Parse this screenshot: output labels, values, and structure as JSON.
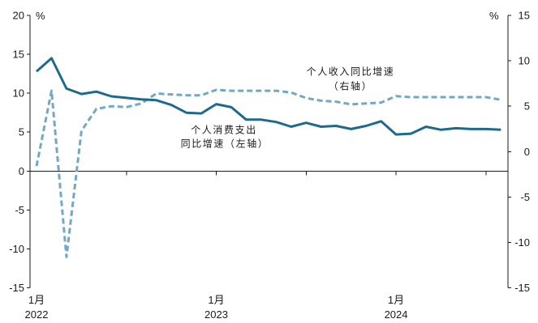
{
  "chart_data": {
    "type": "line",
    "x": [
      "2022-01",
      "2022-02",
      "2022-03",
      "2022-04",
      "2022-05",
      "2022-06",
      "2022-07",
      "2022-08",
      "2022-09",
      "2022-10",
      "2022-11",
      "2022-12",
      "2023-01",
      "2023-02",
      "2023-03",
      "2023-04",
      "2023-05",
      "2023-06",
      "2023-07",
      "2023-08",
      "2023-09",
      "2023-10",
      "2023-11",
      "2023-12",
      "2024-01",
      "2024-02",
      "2024-03",
      "2024-04",
      "2024-05",
      "2024-06",
      "2024-07",
      "2024-08"
    ],
    "x_ticks": [
      {
        "x": "2022-01",
        "month": "1月",
        "year": "2022"
      },
      {
        "x": "2023-01",
        "month": "1月",
        "year": "2023"
      },
      {
        "x": "2024-01",
        "month": "1月",
        "year": "2024"
      }
    ],
    "x_tick_marks": [
      "2022-07",
      "2023-01",
      "2023-07",
      "2024-01",
      "2024-07"
    ],
    "left_axis": {
      "unit": "%",
      "min": -15,
      "max": 20,
      "ticks": [
        20,
        15,
        10,
        5,
        0,
        -5,
        -10,
        -15
      ]
    },
    "right_axis": {
      "unit": "%",
      "min": -15,
      "max": 15,
      "ticks": [
        15,
        10,
        5,
        0,
        -5,
        -10,
        -15
      ]
    },
    "series": [
      {
        "label_lines": [
          "个人消费支出",
          "同比增速（左轴）"
        ],
        "secondary_y": false,
        "dashed": false,
        "color": "#1e6a8d",
        "values": [
          12.8,
          14.5,
          10.6,
          9.9,
          10.2,
          9.6,
          9.4,
          9.2,
          9.1,
          8.5,
          7.5,
          7.4,
          8.6,
          8.2,
          6.6,
          6.6,
          6.3,
          5.7,
          6.2,
          5.7,
          5.8,
          5.4,
          5.8,
          6.4,
          4.7,
          4.8,
          5.7,
          5.3,
          5.5,
          5.4,
          5.4,
          5.3
        ]
      },
      {
        "label_lines": [
          "个人收入同比增速",
          "（右轴）"
        ],
        "secondary_y": true,
        "dashed": true,
        "color": "#72a8c5",
        "values": [
          -1.6,
          6.7,
          -11.6,
          2.3,
          4.7,
          5.0,
          4.9,
          5.3,
          6.4,
          6.3,
          6.2,
          6.2,
          6.8,
          6.7,
          6.7,
          6.7,
          6.7,
          6.5,
          5.9,
          5.6,
          5.5,
          5.2,
          5.3,
          5.4,
          6.1,
          6.0,
          6.0,
          6.0,
          6.0,
          6.0,
          6.0,
          5.7
        ]
      }
    ],
    "grid": false
  }
}
